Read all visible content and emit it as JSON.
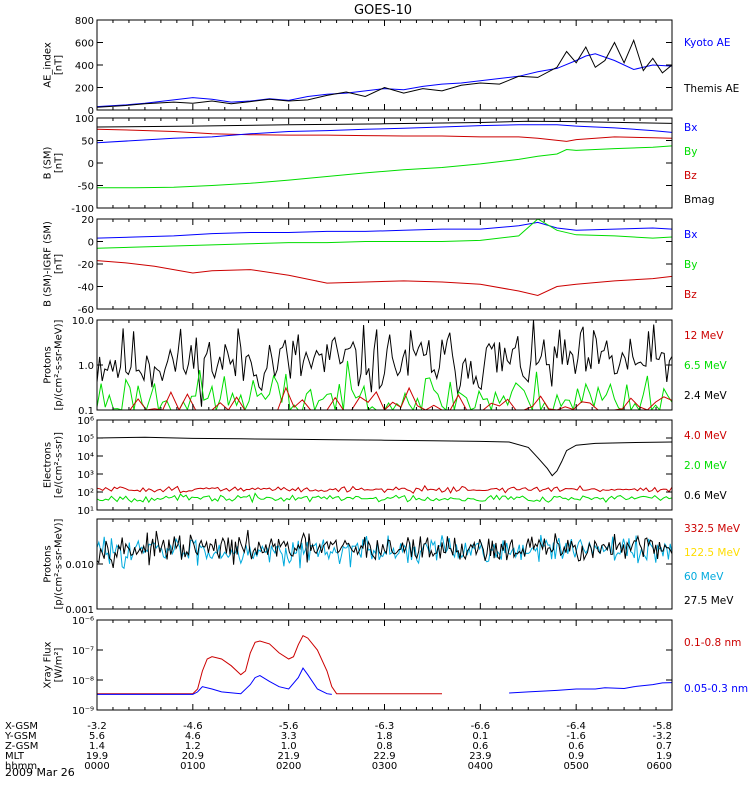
{
  "title": "GOES-10",
  "date_label": "2009 Mar 26",
  "orbit_table": {
    "rows": [
      {
        "label": "X-GSM",
        "values": [
          "-3.2",
          "-4.6",
          "-5.6",
          "-6.3",
          "-6.6",
          "-6.4",
          "-5.8"
        ]
      },
      {
        "label": "Y-GSM",
        "values": [
          "5.6",
          "4.6",
          "3.3",
          "1.8",
          "0.1",
          "-1.6",
          "-3.2"
        ]
      },
      {
        "label": "Z-GSM",
        "values": [
          "1.4",
          "1.2",
          "1.0",
          "0.8",
          "0.6",
          "0.6",
          "0.7"
        ]
      },
      {
        "label": "MLT",
        "values": [
          "19.9",
          "20.9",
          "21.9",
          "22.9",
          "23.9",
          "0.9",
          "1.9"
        ]
      },
      {
        "label": "hhmm",
        "values": [
          "0000",
          "0100",
          "0200",
          "0300",
          "0400",
          "0500",
          "0600"
        ]
      }
    ]
  },
  "colors": {
    "black": "#000000",
    "blue": "#0000ff",
    "red": "#cc0000",
    "green": "#00dd00",
    "cyan": "#00aadd",
    "yellow": "#ffdd00"
  },
  "chart_data": [
    {
      "id": "ae",
      "type": "line",
      "ylabel": [
        "AE_index",
        "[nT]"
      ],
      "ylim": [
        0,
        800
      ],
      "yscale": "linear",
      "yticks": [
        {
          "v": 0,
          "l": "0"
        },
        {
          "v": 200,
          "l": "200"
        },
        {
          "v": 400,
          "l": "400"
        },
        {
          "v": 600,
          "l": "600"
        },
        {
          "v": 800,
          "l": "800"
        }
      ],
      "xlim": [
        0,
        6
      ],
      "legend": [
        {
          "name": "Kyoto AE",
          "color": "#0000ff"
        },
        {
          "name": "Themis AE",
          "color": "#000000"
        }
      ],
      "series": [
        {
          "name": "Kyoto AE",
          "color": "#0000ff",
          "x": [
            0,
            0.3,
            0.5,
            0.8,
            1.0,
            1.2,
            1.4,
            1.6,
            1.8,
            2.0,
            2.2,
            2.4,
            2.6,
            2.8,
            3.0,
            3.2,
            3.4,
            3.6,
            3.8,
            4.0,
            4.2,
            4.4,
            4.6,
            4.8,
            5.0,
            5.1,
            5.2,
            5.4,
            5.6,
            5.8,
            6.0
          ],
          "y": [
            30,
            45,
            60,
            90,
            110,
            95,
            70,
            80,
            100,
            85,
            120,
            140,
            150,
            170,
            190,
            180,
            210,
            230,
            240,
            260,
            280,
            300,
            340,
            370,
            440,
            480,
            500,
            440,
            360,
            400,
            390
          ]
        },
        {
          "name": "Themis AE",
          "color": "#000000",
          "x": [
            0,
            0.3,
            0.5,
            0.8,
            1.0,
            1.2,
            1.4,
            1.6,
            1.8,
            2.0,
            2.2,
            2.4,
            2.6,
            2.8,
            3.0,
            3.2,
            3.4,
            3.6,
            3.8,
            4.0,
            4.2,
            4.4,
            4.6,
            4.8,
            4.9,
            5.0,
            5.1,
            5.2,
            5.3,
            5.4,
            5.5,
            5.6,
            5.7,
            5.8,
            5.9,
            6.0
          ],
          "y": [
            25,
            40,
            55,
            70,
            60,
            80,
            55,
            75,
            95,
            80,
            90,
            130,
            160,
            120,
            200,
            150,
            190,
            170,
            220,
            240,
            230,
            300,
            290,
            380,
            520,
            420,
            560,
            380,
            440,
            600,
            420,
            620,
            350,
            460,
            330,
            400
          ]
        }
      ]
    },
    {
      "id": "bsm",
      "type": "line",
      "ylabel": [
        "B (SM)",
        "[nT]"
      ],
      "ylim": [
        -100,
        100
      ],
      "yscale": "linear",
      "yticks": [
        {
          "v": -100,
          "l": "-100"
        },
        {
          "v": -50,
          "l": "-50"
        },
        {
          "v": 0,
          "l": "0"
        },
        {
          "v": 50,
          "l": "50"
        },
        {
          "v": 100,
          "l": "100"
        }
      ],
      "xlim": [
        0,
        6
      ],
      "legend": [
        {
          "name": "Bx",
          "color": "#0000ff"
        },
        {
          "name": "By",
          "color": "#00dd00"
        },
        {
          "name": "Bz",
          "color": "#cc0000"
        },
        {
          "name": "Bmag",
          "color": "#000000"
        }
      ],
      "series": [
        {
          "name": "Bmag",
          "color": "#000000",
          "x": [
            0,
            1,
            2,
            3,
            4,
            4.5,
            5,
            6
          ],
          "y": [
            80,
            82,
            85,
            87,
            90,
            93,
            92,
            88
          ]
        },
        {
          "name": "Bz",
          "color": "#cc0000",
          "x": [
            0,
            0.4,
            0.8,
            1.2,
            1.6,
            2,
            2.4,
            2.8,
            3.2,
            3.6,
            4.0,
            4.4,
            4.6,
            4.9,
            5.0,
            5.4,
            5.8,
            6.0
          ],
          "y": [
            75,
            73,
            70,
            65,
            63,
            62,
            62,
            61,
            60,
            60,
            58,
            58,
            55,
            48,
            52,
            58,
            56,
            55
          ]
        },
        {
          "name": "Bx",
          "color": "#0000ff",
          "x": [
            0,
            0.4,
            0.8,
            1.2,
            1.6,
            2,
            2.4,
            2.8,
            3.2,
            3.6,
            4.0,
            4.4,
            4.8,
            5.0,
            5.4,
            5.8,
            6.0
          ],
          "y": [
            45,
            50,
            55,
            58,
            65,
            70,
            72,
            75,
            77,
            80,
            83,
            85,
            85,
            82,
            78,
            72,
            68
          ]
        },
        {
          "name": "By",
          "color": "#00dd00",
          "x": [
            0,
            0.4,
            0.8,
            1.2,
            1.6,
            2,
            2.4,
            2.8,
            3.2,
            3.6,
            4.0,
            4.4,
            4.6,
            4.8,
            4.9,
            5.0,
            5.4,
            5.8,
            6.0
          ],
          "y": [
            -55,
            -55,
            -54,
            -50,
            -45,
            -38,
            -30,
            -22,
            -15,
            -10,
            -2,
            8,
            15,
            20,
            30,
            28,
            32,
            35,
            38
          ]
        }
      ]
    },
    {
      "id": "bsm_igrf",
      "type": "line",
      "ylabel": [
        "B (SM)-IGRF (SM)",
        "[nT]"
      ],
      "ylim": [
        -60,
        20
      ],
      "yscale": "linear",
      "yticks": [
        {
          "v": -60,
          "l": "-60"
        },
        {
          "v": -40,
          "l": "-40"
        },
        {
          "v": -20,
          "l": "-20"
        },
        {
          "v": 0,
          "l": "0"
        },
        {
          "v": 20,
          "l": "20"
        }
      ],
      "xlim": [
        0,
        6
      ],
      "legend": [
        {
          "name": "Bx",
          "color": "#0000ff"
        },
        {
          "name": "By",
          "color": "#00dd00"
        },
        {
          "name": "Bz",
          "color": "#cc0000"
        }
      ],
      "series": [
        {
          "name": "Bx",
          "color": "#0000ff",
          "x": [
            0,
            0.4,
            0.8,
            1.2,
            1.6,
            2,
            2.4,
            2.8,
            3.2,
            3.6,
            4.0,
            4.4,
            4.6,
            4.8,
            5.0,
            5.4,
            5.8,
            6.0
          ],
          "y": [
            3,
            4,
            5,
            7,
            8,
            8,
            9,
            9,
            10,
            11,
            11,
            14,
            17,
            12,
            10,
            11,
            12,
            11
          ]
        },
        {
          "name": "By",
          "color": "#00dd00",
          "x": [
            0,
            0.4,
            0.8,
            1.2,
            1.6,
            2,
            2.4,
            2.8,
            3.2,
            3.6,
            4.0,
            4.4,
            4.6,
            4.8,
            5.0,
            5.4,
            5.8,
            6.0
          ],
          "y": [
            -6,
            -5,
            -4,
            -3,
            -2,
            -1,
            -1,
            0,
            0,
            0,
            1,
            5,
            20,
            10,
            6,
            5,
            3,
            4
          ]
        },
        {
          "name": "Bz",
          "color": "#cc0000",
          "x": [
            0,
            0.3,
            0.6,
            1.0,
            1.2,
            1.6,
            2.0,
            2.4,
            2.8,
            3.2,
            3.6,
            4.0,
            4.4,
            4.6,
            4.8,
            5.0,
            5.4,
            5.8,
            6.0
          ],
          "y": [
            -17,
            -19,
            -22,
            -28,
            -26,
            -25,
            -30,
            -37,
            -36,
            -35,
            -36,
            -38,
            -44,
            -48,
            -40,
            -38,
            -35,
            -33,
            -31
          ]
        }
      ]
    },
    {
      "id": "protons_high",
      "type": "line",
      "ylabel": [
        "Protons",
        "[p/(cm²-s-sr-MeV)]"
      ],
      "ylim": [
        0.1,
        10
      ],
      "yscale": "log",
      "yticks": [
        {
          "v": 0.1,
          "l": "0.1"
        },
        {
          "v": 1,
          "l": "1.0"
        },
        {
          "v": 10,
          "l": "10.0"
        }
      ],
      "xlim": [
        0,
        6
      ],
      "legend": [
        {
          "name": "12 MeV",
          "color": "#cc0000"
        },
        {
          "name": "6.5 MeV",
          "color": "#00dd00"
        },
        {
          "name": "2.4 MeV",
          "color": "#000000"
        }
      ],
      "series": [
        {
          "name": "2.4 MeV",
          "color": "#000000",
          "noise": {
            "seed": 11,
            "n": 220,
            "log_center": 1.2,
            "log_spread": 0.55,
            "floor": 0.1
          }
        },
        {
          "name": "6.5 MeV",
          "color": "#00dd00",
          "noise": {
            "seed": 23,
            "n": 140,
            "log_center": 0.18,
            "log_spread": 0.45,
            "floor": 0.1
          }
        },
        {
          "name": "12 MeV",
          "color": "#cc0000",
          "noise": {
            "seed": 37,
            "n": 70,
            "log_center": 0.11,
            "log_spread": 0.3,
            "floor": 0.1
          }
        }
      ]
    },
    {
      "id": "electrons",
      "type": "line",
      "ylabel": [
        "Electrons",
        "[e/(cm²-s-sr)]"
      ],
      "ylim": [
        10,
        1000000
      ],
      "yscale": "log",
      "yticks": [
        {
          "v": 10,
          "l": "10¹"
        },
        {
          "v": 100,
          "l": "10²"
        },
        {
          "v": 1000,
          "l": "10³"
        },
        {
          "v": 10000,
          "l": "10⁴"
        },
        {
          "v": 100000,
          "l": "10⁵"
        },
        {
          "v": 1000000,
          "l": "10⁶"
        }
      ],
      "xlim": [
        0,
        6
      ],
      "legend": [
        {
          "name": "4.0 MeV",
          "color": "#cc0000"
        },
        {
          "name": "2.0 MeV",
          "color": "#00dd00"
        },
        {
          "name": "0.6 MeV",
          "color": "#000000"
        }
      ],
      "series": [
        {
          "name": "0.6 MeV",
          "color": "#000000",
          "x": [
            0,
            0.5,
            1,
            1.5,
            2,
            2.5,
            3,
            3.5,
            4,
            4.3,
            4.5,
            4.6,
            4.7,
            4.75,
            4.8,
            4.85,
            4.9,
            5.0,
            5.2,
            5.5,
            6.0
          ],
          "y": [
            100000,
            110000,
            95000,
            90000,
            85000,
            80000,
            75000,
            70000,
            65000,
            60000,
            30000,
            8000,
            2000,
            800,
            1500,
            5000,
            20000,
            40000,
            50000,
            55000,
            60000
          ]
        },
        {
          "name": "4.0 MeV",
          "color": "#cc0000",
          "noise": {
            "seed": 51,
            "n": 200,
            "log_center": 140,
            "log_spread": 0.12,
            "floor": 10
          }
        },
        {
          "name": "2.0 MeV",
          "color": "#00dd00",
          "noise": {
            "seed": 67,
            "n": 200,
            "log_center": 45,
            "log_spread": 0.15,
            "floor": 10
          }
        }
      ]
    },
    {
      "id": "protons_low",
      "type": "line",
      "ylabel": [
        "Protons",
        "[p/(cm²-s-sr-MeV)]"
      ],
      "ylim": [
        0.001,
        0.1
      ],
      "yscale": "log",
      "yticks": [
        {
          "v": 0.001,
          "l": "0.001"
        },
        {
          "v": 0.01,
          "l": "0.010"
        }
      ],
      "xlim": [
        0,
        6
      ],
      "legend": [
        {
          "name": "332.5 MeV",
          "color": "#cc0000"
        },
        {
          "name": "122.5 MeV",
          "color": "#ffdd00"
        },
        {
          "name": "60 MeV",
          "color": "#00aadd"
        },
        {
          "name": "27.5 MeV",
          "color": "#000000"
        }
      ],
      "series": [
        {
          "name": "60 MeV",
          "color": "#00aadd",
          "noise": {
            "seed": 83,
            "n": 320,
            "log_center": 0.02,
            "log_spread": 0.22,
            "floor": 0.001
          }
        },
        {
          "name": "27.5 MeV",
          "color": "#000000",
          "noise": {
            "seed": 97,
            "n": 320,
            "log_center": 0.022,
            "log_spread": 0.22,
            "floor": 0.001
          }
        }
      ]
    },
    {
      "id": "xray",
      "type": "line",
      "ylabel": [
        "Xray Flux",
        "[W/m²]"
      ],
      "ylim": [
        1e-09,
        1e-06
      ],
      "yscale": "log",
      "yticks": [
        {
          "v": 1e-09,
          "l": "10⁻⁹"
        },
        {
          "v": 1e-08,
          "l": "10⁻⁸"
        },
        {
          "v": 1e-07,
          "l": "10⁻⁷"
        },
        {
          "v": 1e-06,
          "l": "10⁻⁶"
        }
      ],
      "xlim": [
        0,
        6
      ],
      "legend": [
        {
          "name": "0.1-0.8 nm",
          "color": "#cc0000"
        },
        {
          "name": "0.05-0.3 nm",
          "color": "#0000ff"
        }
      ],
      "series": [
        {
          "name": "0.1-0.8 nm",
          "color": "#cc0000",
          "x": [
            0,
            0.5,
            1.0,
            1.05,
            1.1,
            1.15,
            1.2,
            1.3,
            1.4,
            1.5,
            1.55,
            1.6,
            1.65,
            1.7,
            1.8,
            1.9,
            2.0,
            2.05,
            2.1,
            2.15,
            2.2,
            2.3,
            2.4,
            2.45,
            2.5,
            2.55,
            2.6,
            2.7,
            3.0,
            3.2,
            3.5,
            3.6
          ],
          "y": [
            3.5e-09,
            3.5e-09,
            3.5e-09,
            5e-09,
            2e-08,
            5e-08,
            6e-08,
            5e-08,
            3e-08,
            1.5e-08,
            2e-08,
            8e-08,
            1.8e-07,
            2e-07,
            1.6e-07,
            8e-08,
            5e-08,
            6e-08,
            1.5e-07,
            3e-07,
            2.5e-07,
            1e-07,
            2e-08,
            6e-09,
            3.5e-09,
            3.5e-09,
            3.5e-09,
            3.5e-09,
            3.5e-09,
            3.5e-09,
            3.5e-09,
            3.5e-09
          ]
        },
        {
          "name": "0.05-0.3 nm",
          "color": "#0000ff",
          "x": [
            0,
            0.5,
            1.0,
            1.05,
            1.1,
            1.2,
            1.3,
            1.5,
            1.6,
            1.65,
            1.7,
            1.8,
            1.9,
            2.0,
            2.1,
            2.15,
            2.2,
            2.3,
            2.4,
            2.45
          ],
          "y": [
            3.3e-09,
            3.3e-09,
            3.3e-09,
            4e-09,
            6e-09,
            5e-09,
            4e-09,
            3.5e-09,
            7e-09,
            1.2e-08,
            1.4e-08,
            9e-09,
            6e-09,
            5e-09,
            1.2e-08,
            2.5e-08,
            1.5e-08,
            5e-09,
            3.5e-09,
            3.3e-09
          ]
        },
        {
          "name": "0.05-0.3 nm late",
          "color": "#0000ff",
          "x": [
            4.3,
            4.5,
            4.8,
            5.0,
            5.2,
            5.3,
            5.5,
            5.6,
            5.8,
            5.9,
            6.0
          ],
          "y": [
            3.7e-09,
            4e-09,
            4.5e-09,
            5e-09,
            5e-09,
            5.5e-09,
            5.2e-09,
            6e-09,
            7e-09,
            8e-09,
            8.2e-09
          ]
        }
      ]
    }
  ]
}
